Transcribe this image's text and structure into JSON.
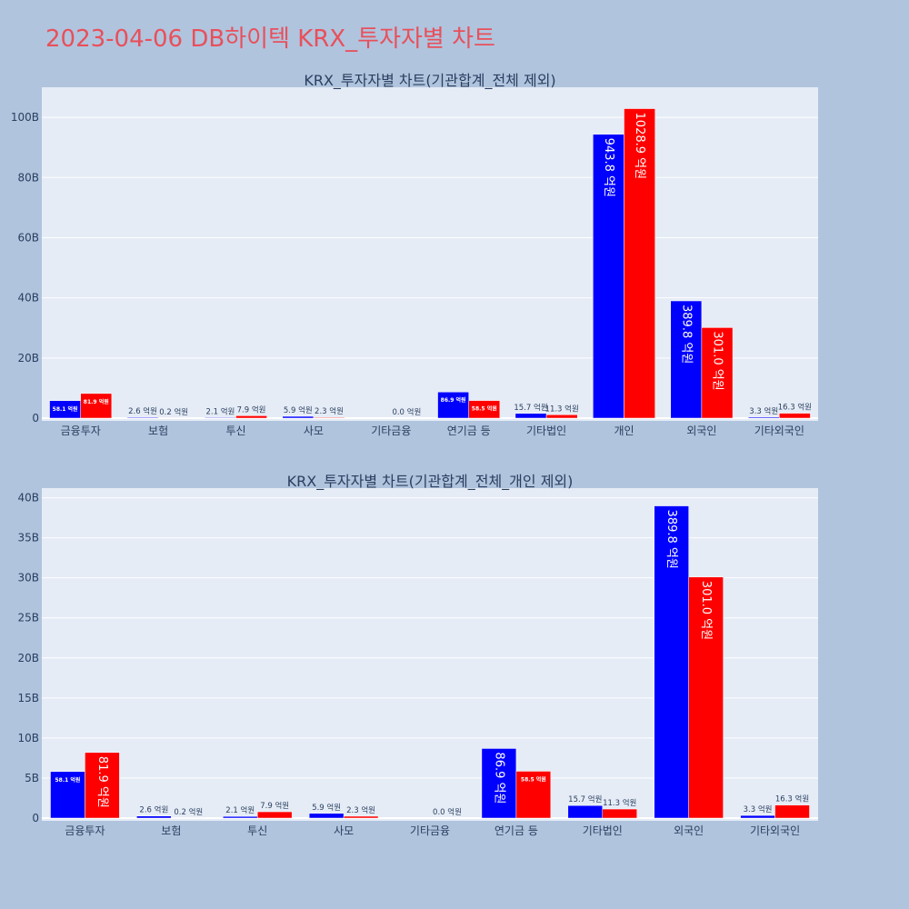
{
  "page_title": "2023-04-06 DB하이텍 KRX_투자자별 차트",
  "colors": {
    "sell": "#0000ff",
    "buy": "#ff0000",
    "plot_bg": "#e5ecf6",
    "page_bg": "#b0c4de",
    "title": "#e8505b"
  },
  "chart_data": [
    {
      "type": "bar",
      "title": "KRX_투자자별 차트(기관합계_전체 제외)",
      "categories": [
        "금융투자",
        "보험",
        "투신",
        "사모",
        "기타금융",
        "연기금 등",
        "기타법인",
        "개인",
        "외국인",
        "기타외국인"
      ],
      "series": [
        {
          "values": [
            5.81,
            0.26,
            0.21,
            0.59,
            0.0,
            8.69,
            1.57,
            94.38,
            38.98,
            0.33
          ],
          "labels": [
            "58.1 억원",
            "2.6 억원",
            "2.1 억원",
            "5.9 억원",
            "",
            "86.9 억원",
            "15.7 억원",
            "943.8 억원",
            "389.8 억원",
            "3.3 억원"
          ]
        },
        {
          "values": [
            8.19,
            0.02,
            0.79,
            0.23,
            0.0,
            5.85,
            1.13,
            102.89,
            30.1,
            1.63
          ],
          "labels": [
            "81.9 억원",
            "0.2 억원",
            "7.9 억원",
            "2.3 억원",
            "0.0 억원",
            "58.5 억원",
            "11.3 억원",
            "1028.9 억원",
            "301.0 억원",
            "16.3 억원"
          ]
        }
      ],
      "ylim": [
        0,
        110
      ],
      "yticks": [
        0,
        20,
        40,
        60,
        80,
        100
      ],
      "ytick_labels": [
        "0",
        "20B",
        "40B",
        "60B",
        "80B",
        "100B"
      ],
      "grid": true,
      "unit": "B"
    },
    {
      "type": "bar",
      "title": "KRX_투자자별 차트(기관합계_전체_개인 제외)",
      "categories": [
        "금융투자",
        "보험",
        "투신",
        "사모",
        "기타금융",
        "연기금 등",
        "기타법인",
        "외국인",
        "기타외국인"
      ],
      "series": [
        {
          "values": [
            5.81,
            0.26,
            0.21,
            0.59,
            0.0,
            8.69,
            1.57,
            38.98,
            0.33
          ],
          "labels": [
            "58.1 억원",
            "2.6 억원",
            "2.1 억원",
            "5.9 억원",
            "",
            "86.9 억원",
            "15.7 억원",
            "389.8 억원",
            "3.3 억원"
          ]
        },
        {
          "values": [
            8.19,
            0.02,
            0.79,
            0.23,
            0.0,
            5.85,
            1.13,
            30.1,
            1.63
          ],
          "labels": [
            "81.9 억원",
            "0.2 억원",
            "7.9 억원",
            "2.3 억원",
            "0.0 억원",
            "58.5 억원",
            "11.3 억원",
            "301.0 억원",
            "16.3 억원"
          ]
        }
      ],
      "ylim": [
        0,
        41.2
      ],
      "yticks": [
        0,
        5,
        10,
        15,
        20,
        25,
        30,
        35,
        40
      ],
      "ytick_labels": [
        "0",
        "5B",
        "10B",
        "15B",
        "20B",
        "25B",
        "30B",
        "35B",
        "40B"
      ],
      "grid": true,
      "unit": "B"
    }
  ]
}
